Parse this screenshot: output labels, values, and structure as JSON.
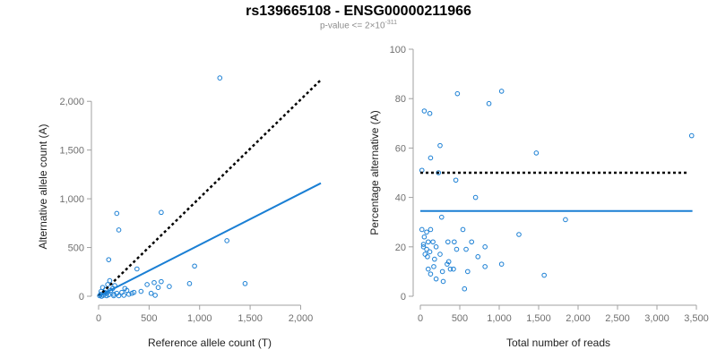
{
  "header": {
    "title": "rs139665108 - ENSG00000211966",
    "subtitle_prefix": "p-value <= 2×10",
    "subtitle_exp": "-311"
  },
  "chart_data": [
    {
      "type": "scatter",
      "xlabel": "Reference allele count (T)",
      "ylabel": "Alternative allele count (A)",
      "xlim": [
        0,
        2200
      ],
      "ylim": [
        0,
        2250
      ],
      "xticks": [
        0,
        500,
        1000,
        1500,
        2000
      ],
      "xtick_labels": [
        "0",
        "500",
        "1,000",
        "1,500",
        "2,000"
      ],
      "yticks": [
        0,
        500,
        1000,
        1500,
        2000
      ],
      "ytick_labels": [
        "0",
        "500",
        "1,000",
        "1,500",
        "2,000"
      ],
      "point_color": "#1a7fd4",
      "points": [
        [
          1200,
          2240
        ],
        [
          180,
          850
        ],
        [
          620,
          860
        ],
        [
          200,
          680
        ],
        [
          100,
          375
        ],
        [
          1270,
          570
        ],
        [
          950,
          310
        ],
        [
          380,
          280
        ],
        [
          900,
          130
        ],
        [
          1450,
          130
        ],
        [
          550,
          140
        ],
        [
          620,
          150
        ],
        [
          480,
          120
        ],
        [
          700,
          100
        ],
        [
          590,
          90
        ],
        [
          280,
          60
        ],
        [
          350,
          40
        ],
        [
          420,
          50
        ],
        [
          520,
          30
        ],
        [
          300,
          20
        ],
        [
          250,
          10
        ],
        [
          180,
          30
        ],
        [
          150,
          20
        ],
        [
          100,
          15
        ],
        [
          80,
          5
        ],
        [
          50,
          10
        ],
        [
          30,
          0
        ],
        [
          20,
          20
        ],
        [
          60,
          40
        ],
        [
          120,
          60
        ],
        [
          140,
          80
        ],
        [
          90,
          120
        ],
        [
          110,
          160
        ],
        [
          160,
          110
        ],
        [
          40,
          90
        ],
        [
          70,
          70
        ],
        [
          200,
          5
        ],
        [
          230,
          40
        ],
        [
          330,
          30
        ],
        [
          560,
          10
        ],
        [
          150,
          5
        ],
        [
          10,
          5
        ],
        [
          25,
          50
        ],
        [
          260,
          80
        ],
        [
          80,
          30
        ]
      ],
      "series": [
        {
          "name": "reference",
          "style": "dotted",
          "color": "#000000",
          "x": [
            0,
            2200
          ],
          "y": [
            0,
            2220
          ]
        },
        {
          "name": "fit",
          "style": "solid",
          "color": "#1a7fd4",
          "x": [
            0,
            2200
          ],
          "y": [
            0,
            1160
          ]
        }
      ]
    },
    {
      "type": "scatter",
      "xlabel": "Total number of reads",
      "ylabel": "Percentage alternative (A)",
      "xlim": [
        0,
        3500
      ],
      "ylim": [
        0,
        100
      ],
      "xticks": [
        0,
        500,
        1000,
        1500,
        2000,
        2500,
        3000,
        3500
      ],
      "xtick_labels": [
        "0",
        "500",
        "1,000",
        "1,500",
        "2,000",
        "2,500",
        "3,000",
        "3,500"
      ],
      "yticks": [
        0,
        20,
        40,
        60,
        80,
        100
      ],
      "ytick_labels": [
        "0",
        "20",
        "40",
        "60",
        "80",
        "100"
      ],
      "point_color": "#1a7fd4",
      "points": [
        [
          470,
          82
        ],
        [
          1030,
          83
        ],
        [
          870,
          78
        ],
        [
          50,
          75
        ],
        [
          120,
          74
        ],
        [
          3440,
          65
        ],
        [
          250,
          61
        ],
        [
          1470,
          58
        ],
        [
          130,
          56
        ],
        [
          20,
          51
        ],
        [
          230,
          50
        ],
        [
          450,
          47
        ],
        [
          700,
          40
        ],
        [
          270,
          32
        ],
        [
          1840,
          31
        ],
        [
          540,
          27
        ],
        [
          20,
          27
        ],
        [
          80,
          26
        ],
        [
          130,
          27
        ],
        [
          1250,
          25
        ],
        [
          50,
          24
        ],
        [
          100,
          22
        ],
        [
          160,
          22
        ],
        [
          350,
          22
        ],
        [
          430,
          22
        ],
        [
          650,
          22
        ],
        [
          820,
          20
        ],
        [
          40,
          20
        ],
        [
          80,
          19
        ],
        [
          200,
          20
        ],
        [
          460,
          19
        ],
        [
          580,
          19
        ],
        [
          60,
          17
        ],
        [
          120,
          18
        ],
        [
          250,
          17
        ],
        [
          730,
          16
        ],
        [
          180,
          15
        ],
        [
          340,
          13
        ],
        [
          380,
          11
        ],
        [
          820,
          12
        ],
        [
          1030,
          13
        ],
        [
          100,
          11
        ],
        [
          130,
          9
        ],
        [
          170,
          12
        ],
        [
          280,
          10
        ],
        [
          600,
          10
        ],
        [
          1570,
          8.5
        ],
        [
          200,
          7
        ],
        [
          290,
          6
        ],
        [
          560,
          3
        ],
        [
          40,
          21
        ],
        [
          90,
          16
        ],
        [
          420,
          11
        ],
        [
          360,
          14
        ]
      ],
      "series": [
        {
          "name": "reference",
          "style": "dotted",
          "color": "#000000",
          "x": [
            0,
            3400
          ],
          "y": [
            50,
            50
          ]
        },
        {
          "name": "fit",
          "style": "solid",
          "color": "#1a7fd4",
          "x": [
            0,
            3450
          ],
          "y": [
            34.5,
            34.5
          ]
        }
      ]
    }
  ]
}
